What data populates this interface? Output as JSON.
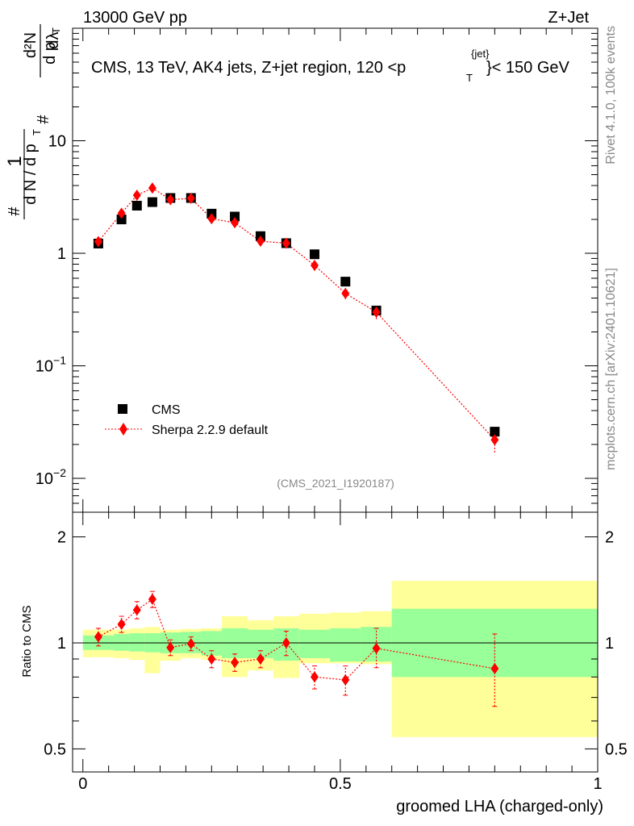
{
  "header": {
    "left": "13000 GeV pp",
    "right": "Z+Jet"
  },
  "side": {
    "rivet": "Rivet 4.1.0,  100k events",
    "mcplots": "mcplots.cern.ch [arXiv:2401.10621]"
  },
  "chart_data": [
    {
      "type": "scatter",
      "panel": "main",
      "title": "CMS, 13 TeV, AK4 jets, Z+jet region, 120 <p",
      "title_sup": "{jet}",
      "title_sub": "T",
      "title_tail": "}< 150 GeV",
      "ylabel": "1/N dN/dpT dλ",
      "ylabel_parts": {
        "hash": "#",
        "one": "1",
        "dn": "d N / d p",
        "t": "T",
        "d2n": "d²N",
        "dp": "d p",
        "dl": "dλ"
      },
      "yscale": "log",
      "ylim": [
        0.005,
        100
      ],
      "xlim": [
        -0.02,
        1.0
      ],
      "ytick_labels": [
        {
          "v": 10,
          "label": "10"
        },
        {
          "v": 1,
          "label": "1"
        },
        {
          "v": 0.1,
          "label": "10",
          "sup": "−1"
        },
        {
          "v": 0.01,
          "label": "10",
          "sup": "−2"
        }
      ],
      "watermark": "(CMS_2021_I1920187)",
      "legend": [
        {
          "name": "CMS",
          "marker": "square",
          "color": "#000000"
        },
        {
          "name": "Sherpa 2.2.9 default",
          "marker": "diamond",
          "color": "#ff0000",
          "linestyle": "dotted"
        }
      ],
      "legend_position": "lower-left",
      "bins": [
        [
          0.0,
          0.06
        ],
        [
          0.06,
          0.09
        ],
        [
          0.09,
          0.12
        ],
        [
          0.12,
          0.15
        ],
        [
          0.15,
          0.19
        ],
        [
          0.19,
          0.23
        ],
        [
          0.23,
          0.27
        ],
        [
          0.27,
          0.32
        ],
        [
          0.32,
          0.37
        ],
        [
          0.37,
          0.42
        ],
        [
          0.42,
          0.48
        ],
        [
          0.48,
          0.54
        ],
        [
          0.54,
          0.6
        ],
        [
          0.6,
          1.0
        ]
      ],
      "series": [
        {
          "name": "CMS",
          "x": [
            0.03,
            0.075,
            0.105,
            0.135,
            0.17,
            0.21,
            0.25,
            0.295,
            0.345,
            0.395,
            0.45,
            0.51,
            0.57,
            0.8
          ],
          "values": [
            1.22,
            2.0,
            2.65,
            2.85,
            3.1,
            3.1,
            2.25,
            2.12,
            1.42,
            1.23,
            0.98,
            0.56,
            0.31,
            0.026
          ]
        },
        {
          "name": "Sherpa 2.2.9 default",
          "x": [
            0.03,
            0.075,
            0.105,
            0.135,
            0.17,
            0.21,
            0.25,
            0.295,
            0.345,
            0.395,
            0.45,
            0.51,
            0.57,
            0.8
          ],
          "values": [
            1.27,
            2.27,
            3.28,
            3.8,
            3.0,
            3.08,
            2.03,
            1.87,
            1.28,
            1.23,
            0.78,
            0.44,
            0.3,
            0.022
          ],
          "err_lo": [
            1.18,
            2.13,
            3.1,
            3.6,
            2.85,
            2.92,
            1.9,
            1.75,
            1.2,
            1.13,
            0.7,
            0.39,
            0.26,
            0.017
          ],
          "err_hi": [
            1.36,
            2.41,
            3.46,
            4.0,
            3.15,
            3.24,
            2.16,
            1.99,
            1.36,
            1.33,
            0.86,
            0.49,
            0.34,
            0.027
          ]
        }
      ]
    },
    {
      "type": "scatter",
      "panel": "ratio",
      "ylabel": "Ratio to CMS",
      "xlabel": "groomed LHA (charged-only)",
      "yscale": "log",
      "ylim": [
        0.43,
        2.35
      ],
      "xlim": [
        -0.02,
        1.0
      ],
      "ytick_labels": [
        {
          "v": 2,
          "label": "2"
        },
        {
          "v": 1,
          "label": "1"
        },
        {
          "v": 0.5,
          "label": "0.5"
        }
      ],
      "xtick_labels": [
        {
          "v": 0,
          "label": "0"
        },
        {
          "v": 0.5,
          "label": "0.5"
        },
        {
          "v": 1,
          "label": "1"
        }
      ],
      "band_inner": [
        [
          0.955,
          1.05
        ],
        [
          0.95,
          1.06
        ],
        [
          0.945,
          1.065
        ],
        [
          0.94,
          1.065
        ],
        [
          0.935,
          1.07
        ],
        [
          0.935,
          1.075
        ],
        [
          0.92,
          1.08
        ],
        [
          0.905,
          1.1
        ],
        [
          0.905,
          1.09
        ],
        [
          0.89,
          1.1
        ],
        [
          0.905,
          1.09
        ],
        [
          0.885,
          1.1
        ],
        [
          0.885,
          1.11
        ],
        [
          0.8,
          1.25
        ]
      ],
      "band_outer": [
        [
          0.91,
          1.09
        ],
        [
          0.905,
          1.09
        ],
        [
          0.895,
          1.1
        ],
        [
          0.82,
          1.11
        ],
        [
          0.89,
          1.09
        ],
        [
          0.905,
          1.095
        ],
        [
          0.895,
          1.1
        ],
        [
          0.8,
          1.19
        ],
        [
          0.835,
          1.16
        ],
        [
          0.795,
          1.19
        ],
        [
          0.875,
          1.21
        ],
        [
          0.875,
          1.22
        ],
        [
          0.87,
          1.23
        ],
        [
          0.54,
          1.5
        ]
      ],
      "series": [
        {
          "name": "Sherpa 2.2.9 default",
          "x": [
            0.03,
            0.075,
            0.105,
            0.135,
            0.17,
            0.21,
            0.25,
            0.295,
            0.345,
            0.395,
            0.45,
            0.51,
            0.57,
            0.8
          ],
          "values": [
            1.04,
            1.13,
            1.24,
            1.33,
            0.97,
            0.995,
            0.9,
            0.88,
            0.9,
            1.0,
            0.8,
            0.785,
            0.965,
            0.845
          ],
          "err_lo": [
            0.98,
            1.07,
            1.17,
            1.26,
            0.92,
            0.95,
            0.85,
            0.83,
            0.85,
            0.92,
            0.74,
            0.71,
            0.85,
            0.66
          ],
          "err_hi": [
            1.1,
            1.19,
            1.31,
            1.4,
            1.02,
            1.04,
            0.95,
            0.93,
            0.95,
            1.08,
            0.86,
            0.86,
            1.1,
            1.06
          ]
        }
      ]
    }
  ]
}
